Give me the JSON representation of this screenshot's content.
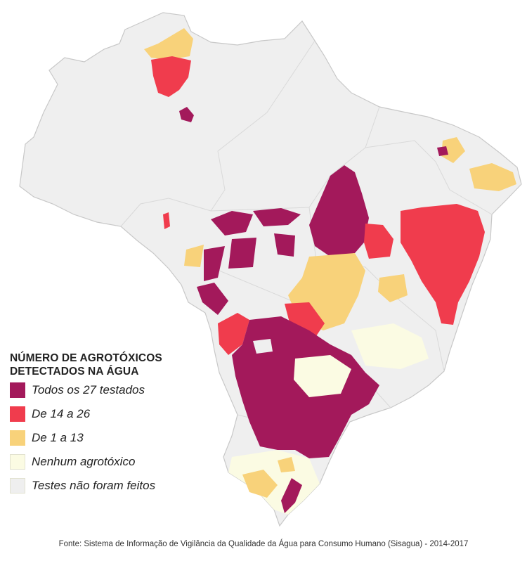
{
  "legend": {
    "title_line1": "NÚMERO DE AGROTÓXICOS",
    "title_line2": "DETECTADOS NA ÁGUA",
    "items": [
      {
        "label": "Todos os 27 testados",
        "color": "#a3195b"
      },
      {
        "label": "De 14 a 26",
        "color": "#f03c4d"
      },
      {
        "label": "De 1 a 13",
        "color": "#f8d27a"
      },
      {
        "label": "Nenhum agrotóxico",
        "color": "#fbfbe3"
      },
      {
        "label": "Testes não foram feitos",
        "color": "#efefef"
      }
    ]
  },
  "source": "Fonte: Sistema de Informação de Vigilância da Qualidade da Água para Consumo Humano (Sisagua) - 2014-2017",
  "colors": {
    "background": "#ffffff",
    "border": "#cfcfcf",
    "all_27": "#a3195b",
    "range_14_26": "#f03c4d",
    "range_1_13": "#f8d27a",
    "none": "#fbfbe3",
    "not_tested": "#efefef"
  }
}
